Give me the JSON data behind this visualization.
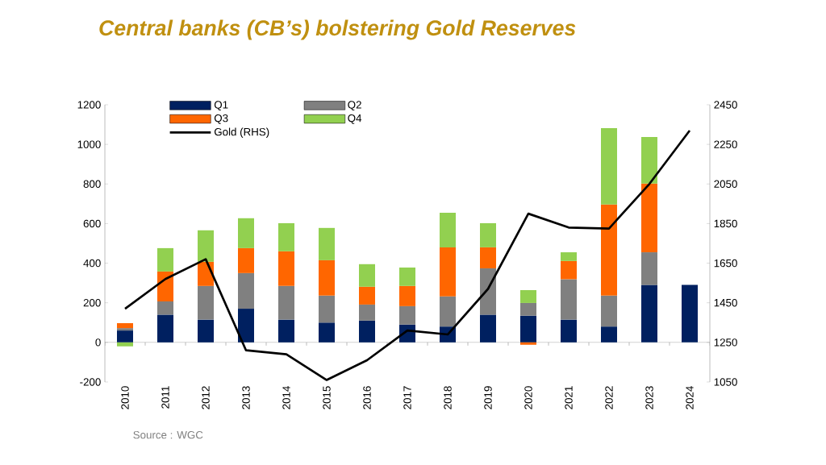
{
  "chart_data": {
    "type": "bar",
    "title": "Central banks (CB’s) bolstering Gold Reserves",
    "stacked": true,
    "categories": [
      "2010",
      "2011",
      "2012",
      "2013",
      "2014",
      "2015",
      "2016",
      "2017",
      "2018",
      "2019",
      "2020",
      "2021",
      "2022",
      "2023",
      "2024"
    ],
    "series": [
      {
        "name": "Q1",
        "color": "#002060",
        "values": [
          60,
          140,
          115,
          170,
          115,
          100,
          110,
          90,
          80,
          140,
          135,
          115,
          80,
          290,
          290
        ]
      },
      {
        "name": "Q2",
        "color": "#808080",
        "values": [
          12,
          67,
          170,
          180,
          170,
          136,
          81,
          93,
          152,
          234,
          64,
          204,
          156,
          165,
          null
        ]
      },
      {
        "name": "Q3",
        "color": "#ff6600",
        "values": [
          25,
          151,
          122,
          126,
          175,
          179,
          90,
          102,
          248,
          106,
          -12,
          92,
          460,
          347,
          null
        ]
      },
      {
        "name": "Q4",
        "color": "#92d050",
        "values": [
          -20,
          118,
          159,
          151,
          142,
          163,
          114,
          93,
          175,
          122,
          65,
          44,
          386,
          235,
          null
        ]
      },
      {
        "name": "Gold (RHS)",
        "type": "line",
        "axis": "y2",
        "color": "#000000",
        "values": [
          1420,
          1570,
          1670,
          1210,
          1190,
          1060,
          1160,
          1310,
          1290,
          1520,
          1900,
          1830,
          1825,
          2050,
          2320
        ]
      }
    ],
    "ylim": [
      -200,
      1200
    ],
    "yticks": [
      -200,
      0,
      200,
      400,
      600,
      800,
      1000,
      1200
    ],
    "y2lim": [
      1050,
      2450
    ],
    "y2ticks": [
      1050,
      1250,
      1450,
      1650,
      1850,
      2050,
      2250,
      2450
    ],
    "legend": "top left",
    "annotations": [
      "Source : WGC"
    ]
  }
}
